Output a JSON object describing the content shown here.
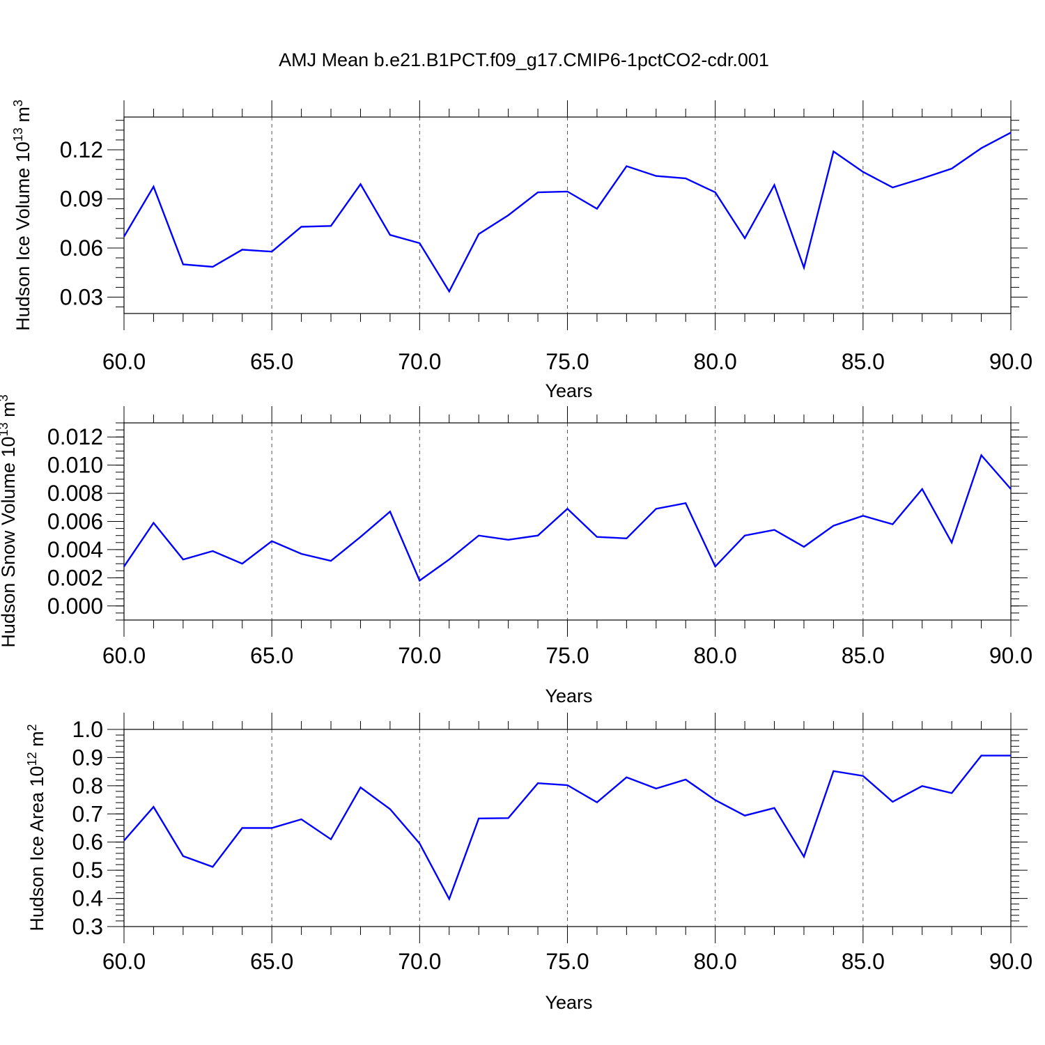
{
  "title": "AMJ Mean b.e21.B1PCT.f09_g17.CMIP6-1pctCO2-cdr.001",
  "colors": {
    "line": "#0000ff",
    "axis": "#000000",
    "grid": "#555555"
  },
  "chart_data": [
    {
      "type": "line",
      "ylabel": {
        "text": "Hudson Ice Volume 10",
        "sup": "13",
        "unit": " m",
        "unit_sup": "3"
      },
      "xlabel": "Years",
      "xlim": [
        60,
        90
      ],
      "ylim": [
        0.02,
        0.14
      ],
      "x_ticks": [
        "60.0",
        "65.0",
        "70.0",
        "75.0",
        "80.0",
        "85.0",
        "90.0"
      ],
      "y_ticks": [
        "0.03",
        "0.06",
        "0.09",
        "0.12"
      ],
      "grid": "vertical dashed at major x ticks",
      "x": [
        60,
        61,
        62,
        63,
        64,
        65,
        66,
        67,
        68,
        69,
        70,
        71,
        72,
        73,
        74,
        75,
        76,
        77,
        78,
        79,
        80,
        81,
        82,
        83,
        84,
        85,
        86,
        87,
        88,
        89,
        90
      ],
      "series": [
        {
          "values": [
            0.067,
            0.0975,
            0.05,
            0.0485,
            0.059,
            0.0578,
            0.073,
            0.0735,
            0.099,
            0.068,
            0.063,
            0.0335,
            0.0685,
            0.08,
            0.094,
            0.0945,
            0.084,
            0.11,
            0.104,
            0.1025,
            0.094,
            0.066,
            0.0985,
            0.048,
            0.119,
            0.1065,
            0.097,
            0.1025,
            0.1085,
            0.121,
            0.1305
          ]
        }
      ]
    },
    {
      "type": "line",
      "ylabel": {
        "text": "Hudson Snow Volume 10",
        "sup": "13",
        "unit": " m",
        "unit_sup": "3"
      },
      "xlabel": "Years",
      "xlim": [
        60,
        90
      ],
      "ylim": [
        -0.001,
        0.013
      ],
      "x_ticks": [
        "60.0",
        "65.0",
        "70.0",
        "75.0",
        "80.0",
        "85.0",
        "90.0"
      ],
      "y_ticks": [
        "0.000",
        "0.002",
        "0.004",
        "0.006",
        "0.008",
        "0.010",
        "0.012"
      ],
      "grid": "vertical dashed at major x ticks",
      "x": [
        60,
        61,
        62,
        63,
        64,
        65,
        66,
        67,
        68,
        69,
        70,
        71,
        72,
        73,
        74,
        75,
        76,
        77,
        78,
        79,
        80,
        81,
        82,
        83,
        84,
        85,
        86,
        87,
        88,
        89,
        90
      ],
      "series": [
        {
          "values": [
            0.0028,
            0.0059,
            0.0033,
            0.0039,
            0.003,
            0.0046,
            0.0037,
            0.0032,
            0.0049,
            0.0067,
            0.0018,
            0.0033,
            0.005,
            0.0047,
            0.005,
            0.0069,
            0.0049,
            0.0048,
            0.0069,
            0.0073,
            0.0028,
            0.005,
            0.0054,
            0.0042,
            0.0057,
            0.0064,
            0.0058,
            0.0083,
            0.0045,
            0.0107,
            0.0083
          ]
        }
      ]
    },
    {
      "type": "line",
      "ylabel": {
        "text": "Hudson Ice Area 10",
        "sup": "12",
        "unit": " m",
        "unit_sup": "2"
      },
      "xlabel": "Years",
      "xlim": [
        60,
        90
      ],
      "ylim": [
        0.3,
        1.0
      ],
      "x_ticks": [
        "60.0",
        "65.0",
        "70.0",
        "75.0",
        "80.0",
        "85.0",
        "90.0"
      ],
      "y_ticks": [
        "0.3",
        "0.4",
        "0.5",
        "0.6",
        "0.7",
        "0.8",
        "0.9",
        "1.0"
      ],
      "grid": "vertical dashed at major x ticks",
      "x": [
        60,
        61,
        62,
        63,
        64,
        65,
        66,
        67,
        68,
        69,
        70,
        71,
        72,
        73,
        74,
        75,
        76,
        77,
        78,
        79,
        80,
        81,
        82,
        83,
        84,
        85,
        86,
        87,
        88,
        89,
        90
      ],
      "series": [
        {
          "values": [
            0.605,
            0.725,
            0.55,
            0.512,
            0.65,
            0.65,
            0.681,
            0.61,
            0.794,
            0.717,
            0.595,
            0.398,
            0.684,
            0.685,
            0.809,
            0.802,
            0.741,
            0.83,
            0.79,
            0.822,
            0.749,
            0.694,
            0.721,
            0.548,
            0.852,
            0.835,
            0.743,
            0.799,
            0.774,
            0.907,
            0.907
          ]
        }
      ]
    }
  ]
}
